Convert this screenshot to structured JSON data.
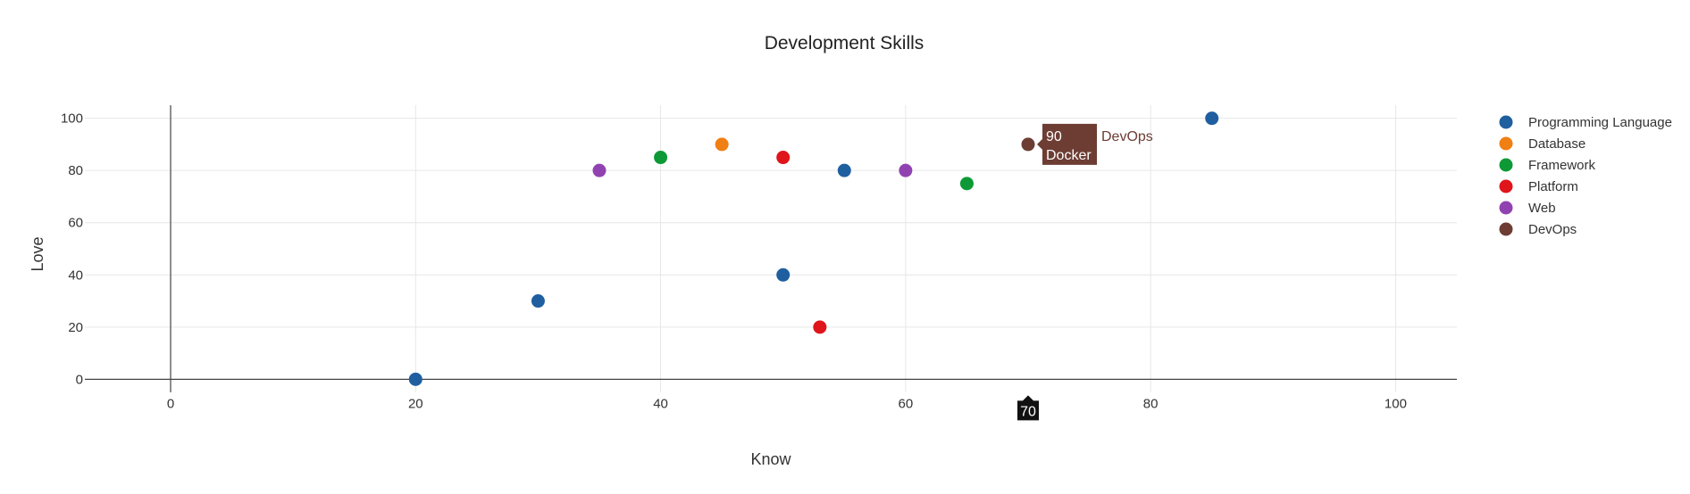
{
  "chart_data": {
    "type": "scatter",
    "title": "Development Skills",
    "xlabel": "Know",
    "ylabel": "Love",
    "xlim": [
      -7,
      105
    ],
    "ylim": [
      -5,
      105
    ],
    "xticks": [
      0,
      20,
      40,
      60,
      80,
      100
    ],
    "yticks": [
      0,
      20,
      40,
      60,
      80,
      100
    ],
    "grid": true,
    "legend_position": "right",
    "series": [
      {
        "name": "Programming Language",
        "color": "#1f5fa0",
        "points": [
          {
            "x": 20,
            "y": 0
          },
          {
            "x": 30,
            "y": 30
          },
          {
            "x": 50,
            "y": 40
          },
          {
            "x": 55,
            "y": 80
          },
          {
            "x": 85,
            "y": 100
          }
        ]
      },
      {
        "name": "Database",
        "color": "#f07f14",
        "points": [
          {
            "x": 45,
            "y": 90
          }
        ]
      },
      {
        "name": "Framework",
        "color": "#0d9a36",
        "points": [
          {
            "x": 40,
            "y": 85
          },
          {
            "x": 65,
            "y": 75
          }
        ]
      },
      {
        "name": "Platform",
        "color": "#e0141b",
        "points": [
          {
            "x": 50,
            "y": 85
          },
          {
            "x": 53,
            "y": 20
          }
        ]
      },
      {
        "name": "Web",
        "color": "#9043b0",
        "points": [
          {
            "x": 35,
            "y": 80
          },
          {
            "x": 60,
            "y": 80
          }
        ]
      },
      {
        "name": "DevOps",
        "color": "#6d3d34",
        "points": [
          {
            "x": 70,
            "y": 90
          }
        ]
      }
    ],
    "hover": {
      "series_index": 5,
      "point_index": 0,
      "y_text": "90",
      "point_label": "Docker",
      "series_label": "DevOps",
      "x_text": "70"
    }
  }
}
